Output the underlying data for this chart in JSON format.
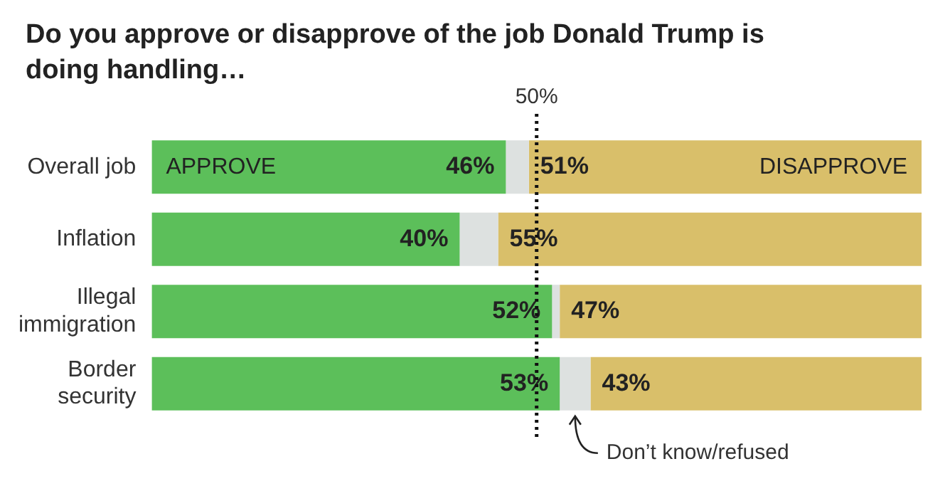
{
  "chart_data": {
    "type": "bar",
    "orientation": "horizontal",
    "stacked": true,
    "title": "Do you approve or disapprove of the job Donald Trump is doing handling…",
    "categories": [
      "Overall job",
      "Inflation",
      "Illegal\nimmigration",
      "Border\nsecurity"
    ],
    "series": [
      {
        "name": "APPROVE",
        "color": "#5cbf5a",
        "values": [
          46,
          40,
          52,
          53
        ],
        "value_labels": [
          "46%",
          "40%",
          "52%",
          "53%"
        ]
      },
      {
        "color": "#dde1e0",
        "values": [
          3,
          5,
          1,
          4
        ]
      },
      {
        "name": "DISAPPROVE",
        "color": "#d9bf6a",
        "values": [
          51,
          55,
          47,
          43
        ],
        "value_labels": [
          "51%",
          "55%",
          "47%",
          "43%"
        ]
      }
    ],
    "xlim": [
      0,
      100
    ],
    "tick_labels": "y",
    "grid": false,
    "legend": false,
    "ref_lines": [
      {
        "axis": "x",
        "value": 50,
        "label": "50%",
        "line_style": "dotted",
        "color": "#111111"
      }
    ],
    "annotations": [
      {
        "text": "Don’t know/refused",
        "x": 55,
        "y": "Border\nsecurity"
      }
    ]
  }
}
